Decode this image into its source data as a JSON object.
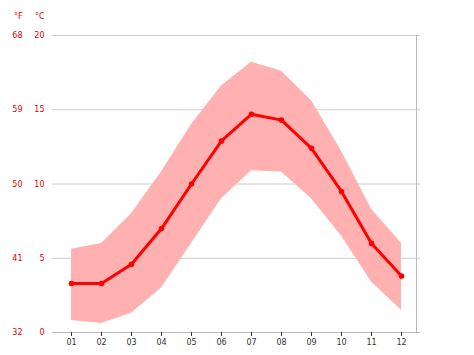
{
  "chart_data": {
    "type": "line",
    "categories": [
      "01",
      "02",
      "03",
      "04",
      "05",
      "06",
      "07",
      "08",
      "09",
      "10",
      "11",
      "12"
    ],
    "values": [
      3.3,
      3.3,
      4.6,
      7.0,
      10.0,
      12.9,
      14.7,
      14.3,
      12.4,
      9.5,
      6.0,
      3.8
    ],
    "upper": [
      5.6,
      6.0,
      8.0,
      10.8,
      14.0,
      16.6,
      18.2,
      17.6,
      15.6,
      12.2,
      8.3,
      6.0
    ],
    "lower": [
      0.8,
      0.6,
      1.3,
      3.0,
      6.0,
      9.0,
      10.9,
      10.8,
      9.0,
      6.5,
      3.4,
      1.5
    ],
    "color": "#ff0000",
    "ylim": [
      0,
      20
    ],
    "yticks": [
      0,
      5,
      10,
      15,
      20
    ],
    "y_label": "°C",
    "y2lim": [
      32,
      68
    ],
    "y2ticks": [
      32,
      41,
      50,
      59,
      68
    ],
    "y2_label": "°F",
    "grid": true
  }
}
